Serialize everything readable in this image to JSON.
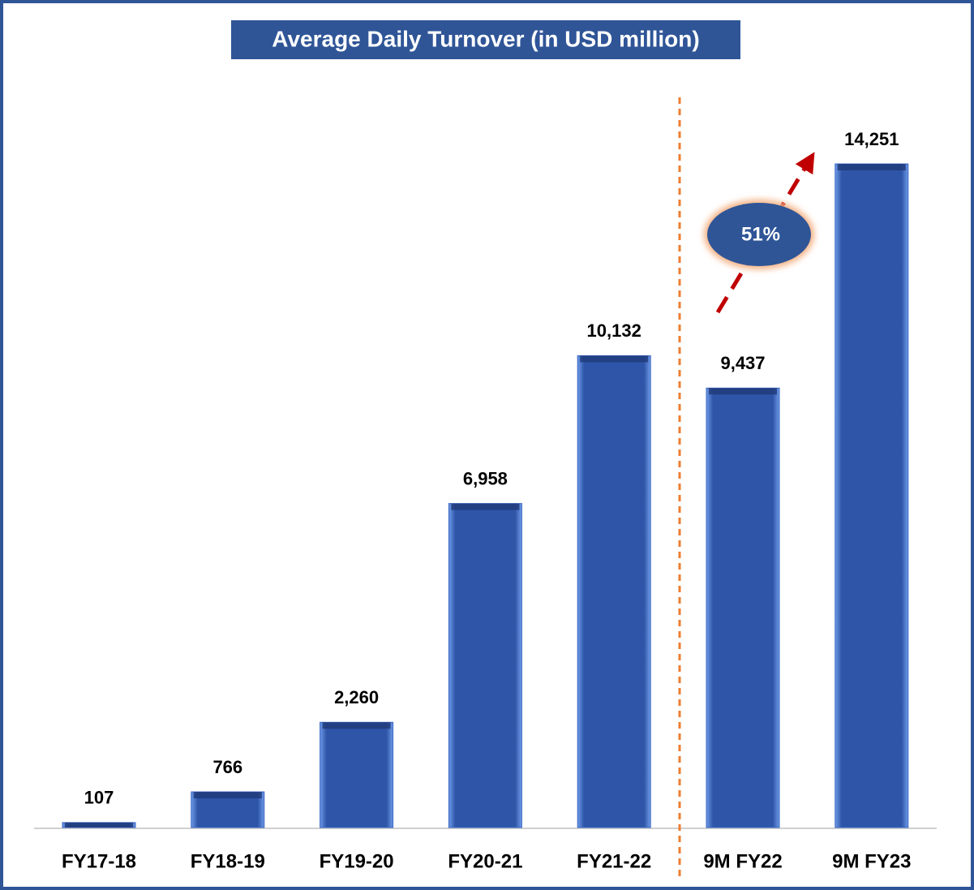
{
  "chart_data": {
    "type": "bar",
    "title": "Average Daily Turnover (in USD million)",
    "categories": [
      "FY17-18",
      "FY18-19",
      "FY19-20",
      "FY20-21",
      "FY21-22",
      "9M FY22",
      "9M FY23"
    ],
    "values": [
      107,
      766,
      2260,
      6958,
      10132,
      9437,
      14251
    ],
    "value_labels": [
      "107",
      "766",
      "2,260",
      "6,958",
      "10,132",
      "9,437",
      "14,251"
    ],
    "color": "#2e55a8",
    "annotation": "51%"
  }
}
